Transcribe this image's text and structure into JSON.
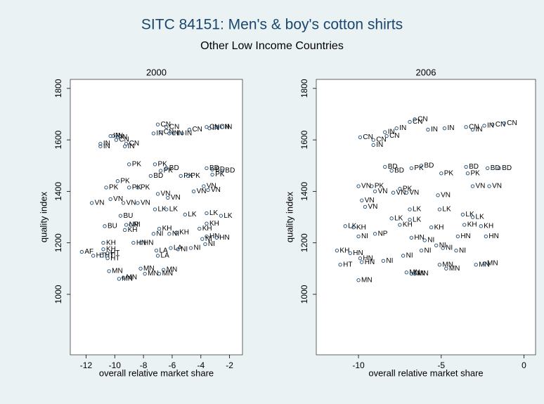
{
  "title": "SITC 84151: Men's & boy's cotton shirts",
  "subtitle": "Other Low Income Countries",
  "chart_data": [
    {
      "type": "scatter",
      "title": "2000",
      "x_label": "overall relative market share",
      "y_label": "quality index",
      "color": "#1a476f",
      "xlim": [
        -13.1,
        -1.1
      ],
      "ylim": [
        765,
        1835
      ],
      "xticks": [
        -12,
        -10,
        -8,
        -6,
        -4,
        -2
      ],
      "yticks": [
        1000,
        1200,
        1400,
        1600,
        1800
      ],
      "x": [
        -12.3,
        -11.5,
        -10.9,
        -10.5,
        -10.8,
        -10.8,
        -10.5,
        -10.4,
        -11.0,
        -11.0,
        -10.3,
        -10.1,
        -9.8,
        -9.9,
        -9.2,
        -9.3,
        -9.0,
        -10.6,
        -9.8,
        -9.0,
        -8.4,
        -11.6,
        -10.3,
        -9.4,
        -8.4,
        -10.7,
        -9.6,
        -9.2,
        -8.9,
        -9.3,
        -8.7,
        -8.2,
        -9.7,
        -9.4,
        -8.2,
        -7.9,
        -6.6,
        -7.0,
        -6.4,
        -7.3,
        -6.8,
        -6.2,
        -5.9,
        -5.3,
        -4.8,
        -3.6,
        -3.4,
        -2.9,
        -2.5,
        -7.2,
        -6.8,
        -7.5,
        -6.4,
        -5.4,
        -4.9,
        -3.6,
        -3.2,
        -2.5,
        -3.2,
        -7.0,
        -6.3,
        -4.5,
        -3.8,
        -3.5,
        -7.2,
        -6.4,
        -5.1,
        -3.6,
        -2.6,
        -6.9,
        -5.7,
        -4.1,
        -3.6,
        -7.3,
        -6.2,
        -3.6,
        -2.9,
        -3.9,
        -3.7,
        -7.1,
        -7.0,
        -6.1,
        -5.6,
        -4.7,
        -6.9
      ],
      "values": [
        1165,
        1150,
        1150,
        1140,
        1200,
        1175,
        1160,
        1090,
        1585,
        1575,
        1615,
        1615,
        1610,
        1600,
        1585,
        1575,
        1505,
        1415,
        1440,
        1415,
        1415,
        1355,
        1370,
        1355,
        1355,
        1265,
        1305,
        1270,
        1270,
        1250,
        1200,
        1200,
        1060,
        1065,
        1100,
        1080,
        1095,
        1660,
        1650,
        1625,
        1630,
        1625,
        1625,
        1625,
        1640,
        1650,
        1645,
        1650,
        1650,
        1505,
        1480,
        1460,
        1490,
        1460,
        1460,
        1490,
        1485,
        1480,
        1465,
        1390,
        1375,
        1400,
        1420,
        1405,
        1330,
        1330,
        1310,
        1315,
        1305,
        1255,
        1240,
        1255,
        1275,
        1235,
        1235,
        1225,
        1220,
        1215,
        1195,
        1170,
        1150,
        1180,
        1175,
        1180,
        1080
      ],
      "point_labels": [
        "AF",
        "HT",
        "HT",
        "HT",
        "KH",
        "KH",
        "HT",
        "MN",
        "IN",
        "IN",
        "IN",
        "IN",
        "IN",
        "CN",
        "CN",
        "IN",
        "PK",
        "PK",
        "PK",
        "PK",
        "PK",
        "VN",
        "VN",
        "VN",
        "VN",
        "BU",
        "BU",
        "NP",
        "NI",
        "KH",
        "HN",
        "HN",
        "MN",
        "MN",
        "MN",
        "MN",
        "MN",
        "CN",
        "CN",
        "IN",
        "CN",
        "IN",
        "IN",
        "IN",
        "CN",
        "CN",
        "IN",
        "CN",
        "IN",
        "PK",
        "PK",
        "BD",
        "BD",
        "PK",
        "PK",
        "BD",
        "BD",
        "BD",
        "PK",
        "VN",
        "VN",
        "VN",
        "VN",
        "VN",
        "LK",
        "LK",
        "LK",
        "LK",
        "LK",
        "KH",
        "KH",
        "KH",
        "KH",
        "NI",
        "NI",
        "HN",
        "HN",
        "NI",
        "NI",
        "LA",
        "LA",
        "LA",
        "NI",
        "NI",
        "MN"
      ]
    },
    {
      "type": "scatter",
      "title": "2006",
      "x_label": "overall relative market share",
      "y_label": "quality index",
      "color": "#1a476f",
      "xlim": [
        -12.55,
        0.7
      ],
      "ylim": [
        765,
        1835
      ],
      "xticks": [
        -10,
        -5,
        0
      ],
      "yticks": [
        1000,
        1200,
        1400,
        1600,
        1800
      ],
      "x": [
        -9.9,
        -9.1,
        -8.3,
        -9.1,
        -8.4,
        -7.7,
        -6.9,
        -6.6,
        -5.8,
        -4.8,
        -3.5,
        -1.9,
        -1.2,
        -3.1,
        -2.4,
        -8.4,
        -8.0,
        -6.8,
        -6.2,
        -5.0,
        -3.5,
        -2.2,
        -1.5,
        -3.4,
        -9.2,
        -10.0,
        -9.0,
        -7.9,
        -7.1,
        -7.5,
        -5.2,
        -3.1,
        -2.1,
        -9.8,
        -9.6,
        -6.9,
        -5.1,
        -8.0,
        -6.9,
        -3.7,
        -3.1,
        -10.8,
        -10.3,
        -7.5,
        -5.6,
        -3.6,
        -2.6,
        -9.0,
        -10.0,
        -6.8,
        -4.0,
        -2.3,
        -11.3,
        -10.5,
        -9.9,
        -11.1,
        -9.8,
        -8.5,
        -7.3,
        -6.2,
        -4.1,
        -10.0,
        -7.1,
        -6.8,
        -6.6,
        -5.1,
        -4.7,
        -2.9,
        -2.4,
        -6.0,
        -5.3,
        -4.9
      ],
      "values": [
        1610,
        1600,
        1615,
        1580,
        1630,
        1645,
        1670,
        1680,
        1640,
        1645,
        1650,
        1660,
        1665,
        1640,
        1655,
        1495,
        1480,
        1490,
        1500,
        1470,
        1495,
        1490,
        1490,
        1470,
        1420,
        1420,
        1400,
        1395,
        1395,
        1410,
        1385,
        1420,
        1420,
        1365,
        1340,
        1330,
        1330,
        1295,
        1290,
        1310,
        1300,
        1265,
        1260,
        1270,
        1260,
        1270,
        1265,
        1235,
        1225,
        1220,
        1225,
        1225,
        1170,
        1160,
        1140,
        1115,
        1125,
        1130,
        1150,
        1170,
        1170,
        1055,
        1085,
        1080,
        1080,
        1115,
        1100,
        1115,
        1120,
        1210,
        1190,
        1180
      ],
      "point_labels": [
        "CN",
        "CN",
        "CN",
        "IN",
        "IN",
        "IN",
        "CN",
        "CN",
        "IN",
        "IN",
        "CN",
        "CN",
        "CN",
        "IN",
        "IN",
        "BD",
        "BD",
        "PK",
        "BD",
        "PK",
        "BD",
        "BD",
        "BD",
        "PK",
        "PK",
        "VN",
        "VN",
        "VN",
        "VN",
        "PK",
        "VN",
        "VN",
        "VN",
        "VN",
        "VN",
        "LK",
        "LK",
        "LK",
        "LK",
        "LK",
        "LK",
        "LK",
        "KH",
        "KH",
        "KH",
        "KH",
        "KH",
        "NP",
        "NI",
        "HN",
        "HN",
        "HN",
        "KH",
        "HN",
        "HN",
        "HT",
        "HN",
        "NI",
        "NI",
        "NI",
        "NI",
        "MN",
        "MN",
        "MN",
        "MN",
        "MN",
        "MN",
        "MN",
        "MN",
        "NI",
        "NI",
        "NI"
      ]
    }
  ]
}
